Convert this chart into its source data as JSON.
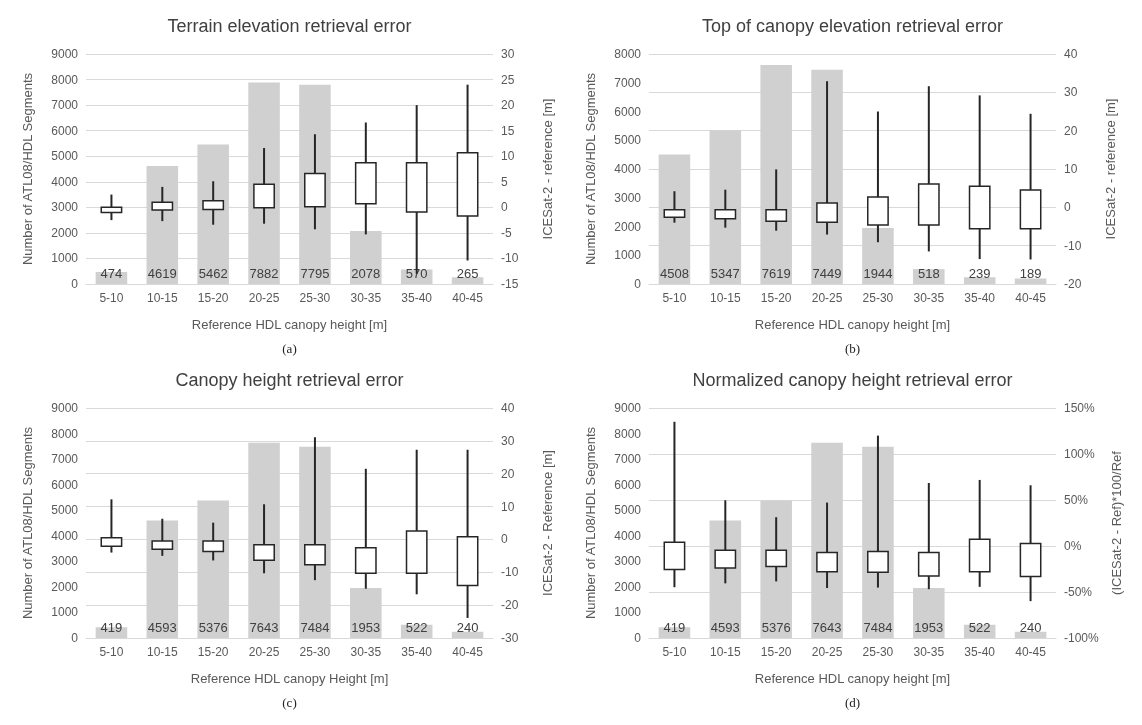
{
  "chart_data": [
    {
      "type": "bar",
      "title": "Terrain elevation retrieval error",
      "xlabel": "Reference HDL canopy height [m]",
      "ylabel": "Number of ATL08/HDL Segments",
      "y2label": "ICESat-2 - reference [m]",
      "annotations": [
        "(a)"
      ],
      "categories": [
        "5-10",
        "10-15",
        "15-20",
        "20-25",
        "25-30",
        "30-35",
        "35-40",
        "40-45"
      ],
      "ylim": [
        0,
        9000
      ],
      "yticks": [
        0,
        1000,
        2000,
        3000,
        4000,
        5000,
        6000,
        7000,
        8000,
        9000
      ],
      "y2lim": [
        -15,
        30
      ],
      "y2ticks": [
        -15,
        -10,
        -5,
        0,
        5,
        10,
        15,
        20,
        25,
        30
      ],
      "grid": "y2",
      "data_labels": true,
      "series": [
        {
          "color": "#d0d0d0",
          "values": [
            474,
            4619,
            5462,
            7882,
            7795,
            2078,
            570,
            265
          ]
        },
        {
          "type": "box",
          "axis": "y2",
          "color": "#262626",
          "boxes": [
            {
              "low": -2.5,
              "q1": -1,
              "q3": 0,
              "high": 2.5
            },
            {
              "low": -2.7,
              "q1": -0.5,
              "q3": 1,
              "high": 4
            },
            {
              "low": -3.4,
              "q1": -0.4,
              "q3": 1.3,
              "high": 5.1
            },
            {
              "low": -3.2,
              "q1": -0.1,
              "q3": 4.5,
              "high": 11.6
            },
            {
              "low": -4.3,
              "q1": 0.1,
              "q3": 6.6,
              "high": 14.3
            },
            {
              "low": -5.3,
              "q1": 0.7,
              "q3": 8.7,
              "high": 16.6
            },
            {
              "low": -13,
              "q1": -0.9,
              "q3": 8.7,
              "high": 20
            },
            {
              "low": -10.4,
              "q1": -1.7,
              "q3": 10.7,
              "high": 24
            }
          ]
        }
      ]
    },
    {
      "type": "bar",
      "title": "Top of canopy elevation retrieval error",
      "xlabel": "Reference HDL canopy height [m]",
      "ylabel": "Number of ATL08/HDL Segments",
      "y2label": "ICESat-2 - reference [m]",
      "annotations": [
        "(b)"
      ],
      "categories": [
        "5-10",
        "10-15",
        "15-20",
        "20-25",
        "25-30",
        "30-35",
        "35-40",
        "40-45"
      ],
      "ylim": [
        0,
        8000
      ],
      "yticks": [
        0,
        1000,
        2000,
        3000,
        4000,
        5000,
        6000,
        7000,
        8000
      ],
      "y2lim": [
        -20,
        40
      ],
      "y2ticks": [
        -20,
        -10,
        0,
        10,
        20,
        30,
        40
      ],
      "grid": "y2",
      "data_labels": true,
      "series": [
        {
          "color": "#d0d0d0",
          "values": [
            4508,
            5347,
            7619,
            7449,
            1944,
            518,
            239,
            189
          ]
        },
        {
          "type": "box",
          "axis": "y2",
          "color": "#262626",
          "boxes": [
            {
              "low": -4,
              "q1": -2.6,
              "q3": -0.6,
              "high": 4.2
            },
            {
              "low": -5.3,
              "q1": -3,
              "q3": -0.6,
              "high": 4.6
            },
            {
              "low": -6.1,
              "q1": -3.6,
              "q3": -0.6,
              "high": 9.9
            },
            {
              "low": -7.1,
              "q1": -3.9,
              "q3": 1.1,
              "high": 32.9
            },
            {
              "low": -9.1,
              "q1": -4.6,
              "q3": 2.7,
              "high": 25
            },
            {
              "low": -11.5,
              "q1": -4.6,
              "q3": 6.1,
              "high": 31.6
            },
            {
              "low": -13.5,
              "q1": -5.6,
              "q3": 5.5,
              "high": 29.2
            },
            {
              "low": -13.6,
              "q1": -5.6,
              "q3": 4.5,
              "high": 24.4
            }
          ]
        }
      ]
    },
    {
      "type": "bar",
      "title": "Canopy height retrieval error",
      "xlabel": "Reference HDL canopy Height [m]",
      "ylabel": "Number of ATL08/HDL Segments",
      "y2label": "ICESat-2 - Reference [m]",
      "annotations": [
        "(c)"
      ],
      "categories": [
        "5-10",
        "10-15",
        "15-20",
        "20-25",
        "25-30",
        "30-35",
        "35-40",
        "40-45"
      ],
      "ylim": [
        0,
        9000
      ],
      "yticks": [
        0,
        1000,
        2000,
        3000,
        4000,
        5000,
        6000,
        7000,
        8000,
        9000
      ],
      "y2lim": [
        -30,
        40
      ],
      "y2ticks": [
        -30,
        -20,
        -10,
        0,
        10,
        20,
        30,
        40
      ],
      "grid": "y2",
      "data_labels": true,
      "series": [
        {
          "color": "#d0d0d0",
          "values": [
            419,
            4593,
            5376,
            7643,
            7484,
            1953,
            522,
            240
          ]
        },
        {
          "type": "box",
          "axis": "y2",
          "color": "#262626",
          "boxes": [
            {
              "low": -4,
              "q1": -2.1,
              "q3": 0.5,
              "high": 12.2
            },
            {
              "low": -5,
              "q1": -3,
              "q3": -0.5,
              "high": 6.3
            },
            {
              "low": -6.4,
              "q1": -3.7,
              "q3": -0.5,
              "high": 5.1
            },
            {
              "low": -10.3,
              "q1": -6.3,
              "q3": -1.6,
              "high": 10.7
            },
            {
              "low": -12.4,
              "q1": -7.7,
              "q3": -1.6,
              "high": 31.1
            },
            {
              "low": -15,
              "q1": -10.3,
              "q3": -2.5,
              "high": 21.5
            },
            {
              "low": -16.7,
              "q1": -10.3,
              "q3": 2.6,
              "high": 27.3
            },
            {
              "low": -23.9,
              "q1": -14,
              "q3": 0.8,
              "high": 27.3
            }
          ]
        }
      ]
    },
    {
      "type": "bar",
      "title": "Normalized canopy height retrieval error",
      "xlabel": "Reference HDL canopy height [m]",
      "ylabel": "Number of ATL08/HDL Segments",
      "y2label": "(ICESat-2 - Ref)*100/Ref",
      "annotations": [
        "(d)"
      ],
      "categories": [
        "5-10",
        "10-15",
        "15-20",
        "20-25",
        "25-30",
        "30-35",
        "35-40",
        "40-45"
      ],
      "ylim": [
        0,
        9000
      ],
      "yticks": [
        0,
        1000,
        2000,
        3000,
        4000,
        5000,
        6000,
        7000,
        8000,
        9000
      ],
      "y2lim": [
        -100,
        150
      ],
      "y2ticks": [
        {
          "value": -100,
          "label": "-100%"
        },
        {
          "value": -50,
          "label": "-50%"
        },
        {
          "value": 0,
          "label": "0%"
        },
        {
          "value": 50,
          "label": "50%"
        },
        {
          "value": 100,
          "label": "100%"
        },
        {
          "value": 150,
          "label": "150%"
        }
      ],
      "grid": "y2",
      "data_labels": true,
      "series": [
        {
          "color": "#d0d0d0",
          "values": [
            419,
            4593,
            5376,
            7643,
            7484,
            1953,
            522,
            240
          ]
        },
        {
          "type": "box",
          "axis": "y2",
          "color": "#262626",
          "boxes": [
            {
              "low": -44.8,
              "q1": -25.6,
              "q3": 4.1,
              "high": 135
            },
            {
              "low": -40.6,
              "q1": -23.9,
              "q3": -4.7,
              "high": 49.7
            },
            {
              "low": -38.5,
              "q1": -22.2,
              "q3": -4.7,
              "high": 31.3
            },
            {
              "low": -45.7,
              "q1": -28.1,
              "q3": -7.2,
              "high": 47.2
            },
            {
              "low": -45.2,
              "q1": -28.5,
              "q3": -5.9,
              "high": 120
            },
            {
              "low": -46.9,
              "q1": -32.7,
              "q3": -7.2,
              "high": 68.5
            },
            {
              "low": -44.4,
              "q1": -28.1,
              "q3": 7.4,
              "high": 71.8
            },
            {
              "low": -59.9,
              "q1": -33.1,
              "q3": 2.8,
              "high": 66
            }
          ]
        }
      ]
    }
  ]
}
